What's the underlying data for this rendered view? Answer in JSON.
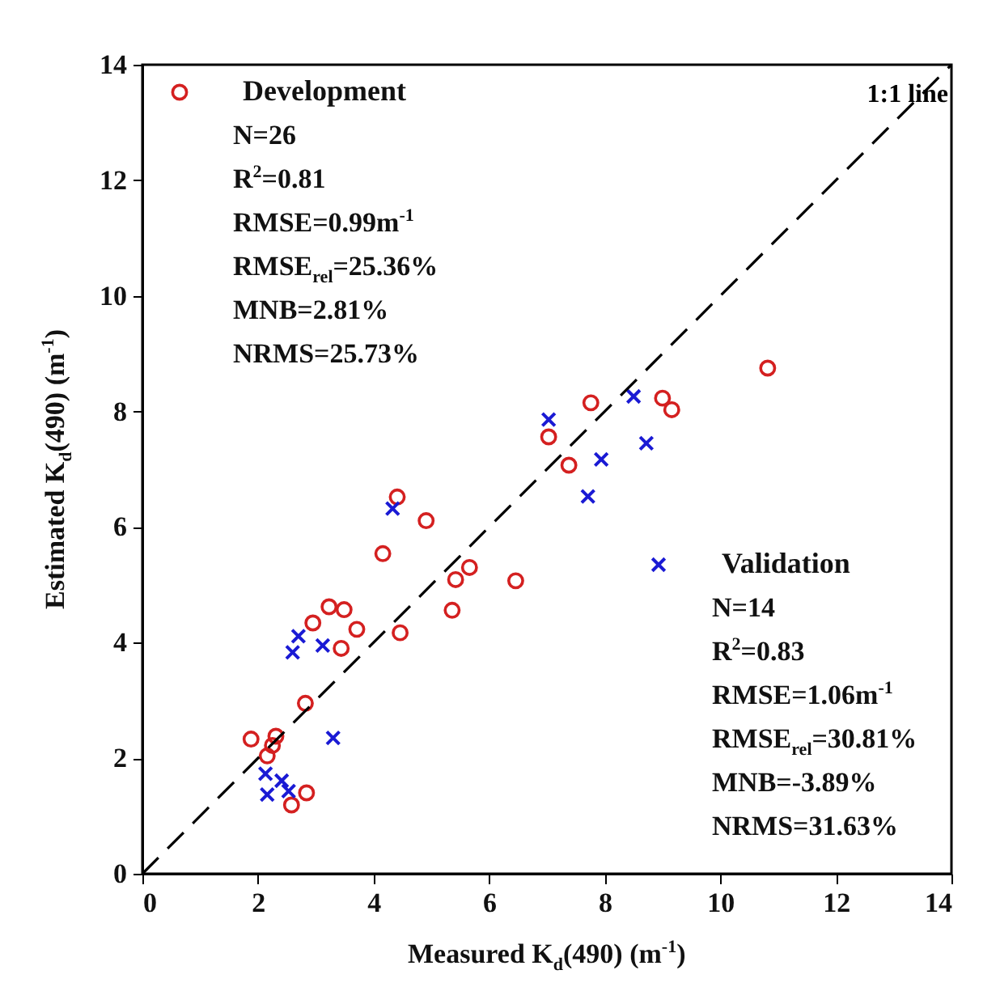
{
  "chart_data": {
    "type": "scatter",
    "xlabel": "Measured K$_{d}$(490) (m$^{-1}$)",
    "ylabel": "Estimated K$_{d}$(490) (m$^{-1}$)",
    "xlim": [
      0,
      14
    ],
    "ylim": [
      0,
      14
    ],
    "xticks": [
      0,
      2,
      4,
      6,
      8,
      10,
      12,
      14
    ],
    "yticks": [
      0,
      2,
      4,
      6,
      8,
      10,
      12,
      14
    ],
    "legend": "top left",
    "series": [
      {
        "name": "Development",
        "marker": "circle",
        "color": "#d42020",
        "x": [
          1.88,
          2.31,
          2.25,
          2.16,
          2.84,
          2.58,
          2.82,
          2.95,
          3.23,
          3.49,
          3.71,
          3.44,
          4.16,
          4.41,
          4.91,
          4.46,
          5.42,
          5.66,
          5.36,
          6.46,
          7.76,
          7.03,
          7.38,
          9.0,
          9.16,
          10.82
        ],
        "values": [
          2.33,
          2.38,
          2.22,
          2.04,
          1.4,
          1.19,
          2.95,
          4.34,
          4.62,
          4.57,
          4.23,
          3.9,
          5.54,
          6.52,
          6.11,
          4.17,
          5.09,
          5.3,
          4.56,
          5.07,
          8.15,
          7.56,
          7.07,
          8.23,
          8.03,
          8.75
        ]
      },
      {
        "name": "Validation",
        "marker": "cross",
        "color": "#1a1ad4",
        "x": [
          4.33,
          7.71,
          2.7,
          2.6,
          3.12,
          3.3,
          2.13,
          2.41,
          2.53,
          2.16,
          7.03,
          8.5,
          8.72,
          7.94
        ],
        "values": [
          6.32,
          6.53,
          4.11,
          3.83,
          3.95,
          2.35,
          1.73,
          1.61,
          1.43,
          1.37,
          7.86,
          8.26,
          7.45,
          7.17
        ]
      },
      {
        "name": "1:1 line",
        "type": "line",
        "line_style": "dashed",
        "color": "#000000",
        "x": [
          0,
          14
        ],
        "values": [
          0,
          14
        ]
      }
    ],
    "annotations": [
      "N=26",
      "R$^{2}$=0.81",
      "RMSE=0.99m$^{-1}$",
      "RMSE$_{rel}$=25.36%",
      "MNB=2.81%",
      "NRMS=25.73%",
      "N=14",
      "R$^{2}$=0.83",
      "RMSE=1.06m$^{-1}$",
      "RMSE$_{rel}$=30.81%",
      "MNB=-3.89%",
      "NRMS=31.63%"
    ]
  }
}
